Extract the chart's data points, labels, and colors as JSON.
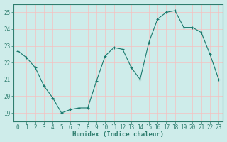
{
  "x": [
    0,
    1,
    2,
    3,
    4,
    5,
    6,
    7,
    8,
    9,
    10,
    11,
    12,
    13,
    14,
    15,
    16,
    17,
    18,
    19,
    20,
    21,
    22,
    23
  ],
  "y": [
    22.7,
    22.3,
    21.7,
    20.6,
    19.9,
    19.0,
    19.2,
    19.3,
    19.3,
    20.9,
    22.4,
    22.9,
    22.8,
    21.7,
    21.0,
    23.2,
    24.6,
    25.0,
    25.1,
    24.1,
    24.1,
    23.8,
    22.5,
    21.0
  ],
  "xlabel": "Humidex (Indice chaleur)",
  "ylim": [
    18.5,
    25.5
  ],
  "xlim": [
    -0.5,
    23.5
  ],
  "yticks": [
    19,
    20,
    21,
    22,
    23,
    24,
    25
  ],
  "xticks": [
    0,
    1,
    2,
    3,
    4,
    5,
    6,
    7,
    8,
    9,
    10,
    11,
    12,
    13,
    14,
    15,
    16,
    17,
    18,
    19,
    20,
    21,
    22,
    23
  ],
  "line_color": "#1a7a6e",
  "marker": "+",
  "bg_color": "#ceecea",
  "grid_color_major": "#f5c0c0",
  "grid_color_minor": "#d6eceb",
  "axis_color": "#2e7d6e",
  "tick_color": "#2e7d6e",
  "label_color": "#2e7d6e",
  "tick_fontsize": 5.5,
  "xlabel_fontsize": 6.5
}
